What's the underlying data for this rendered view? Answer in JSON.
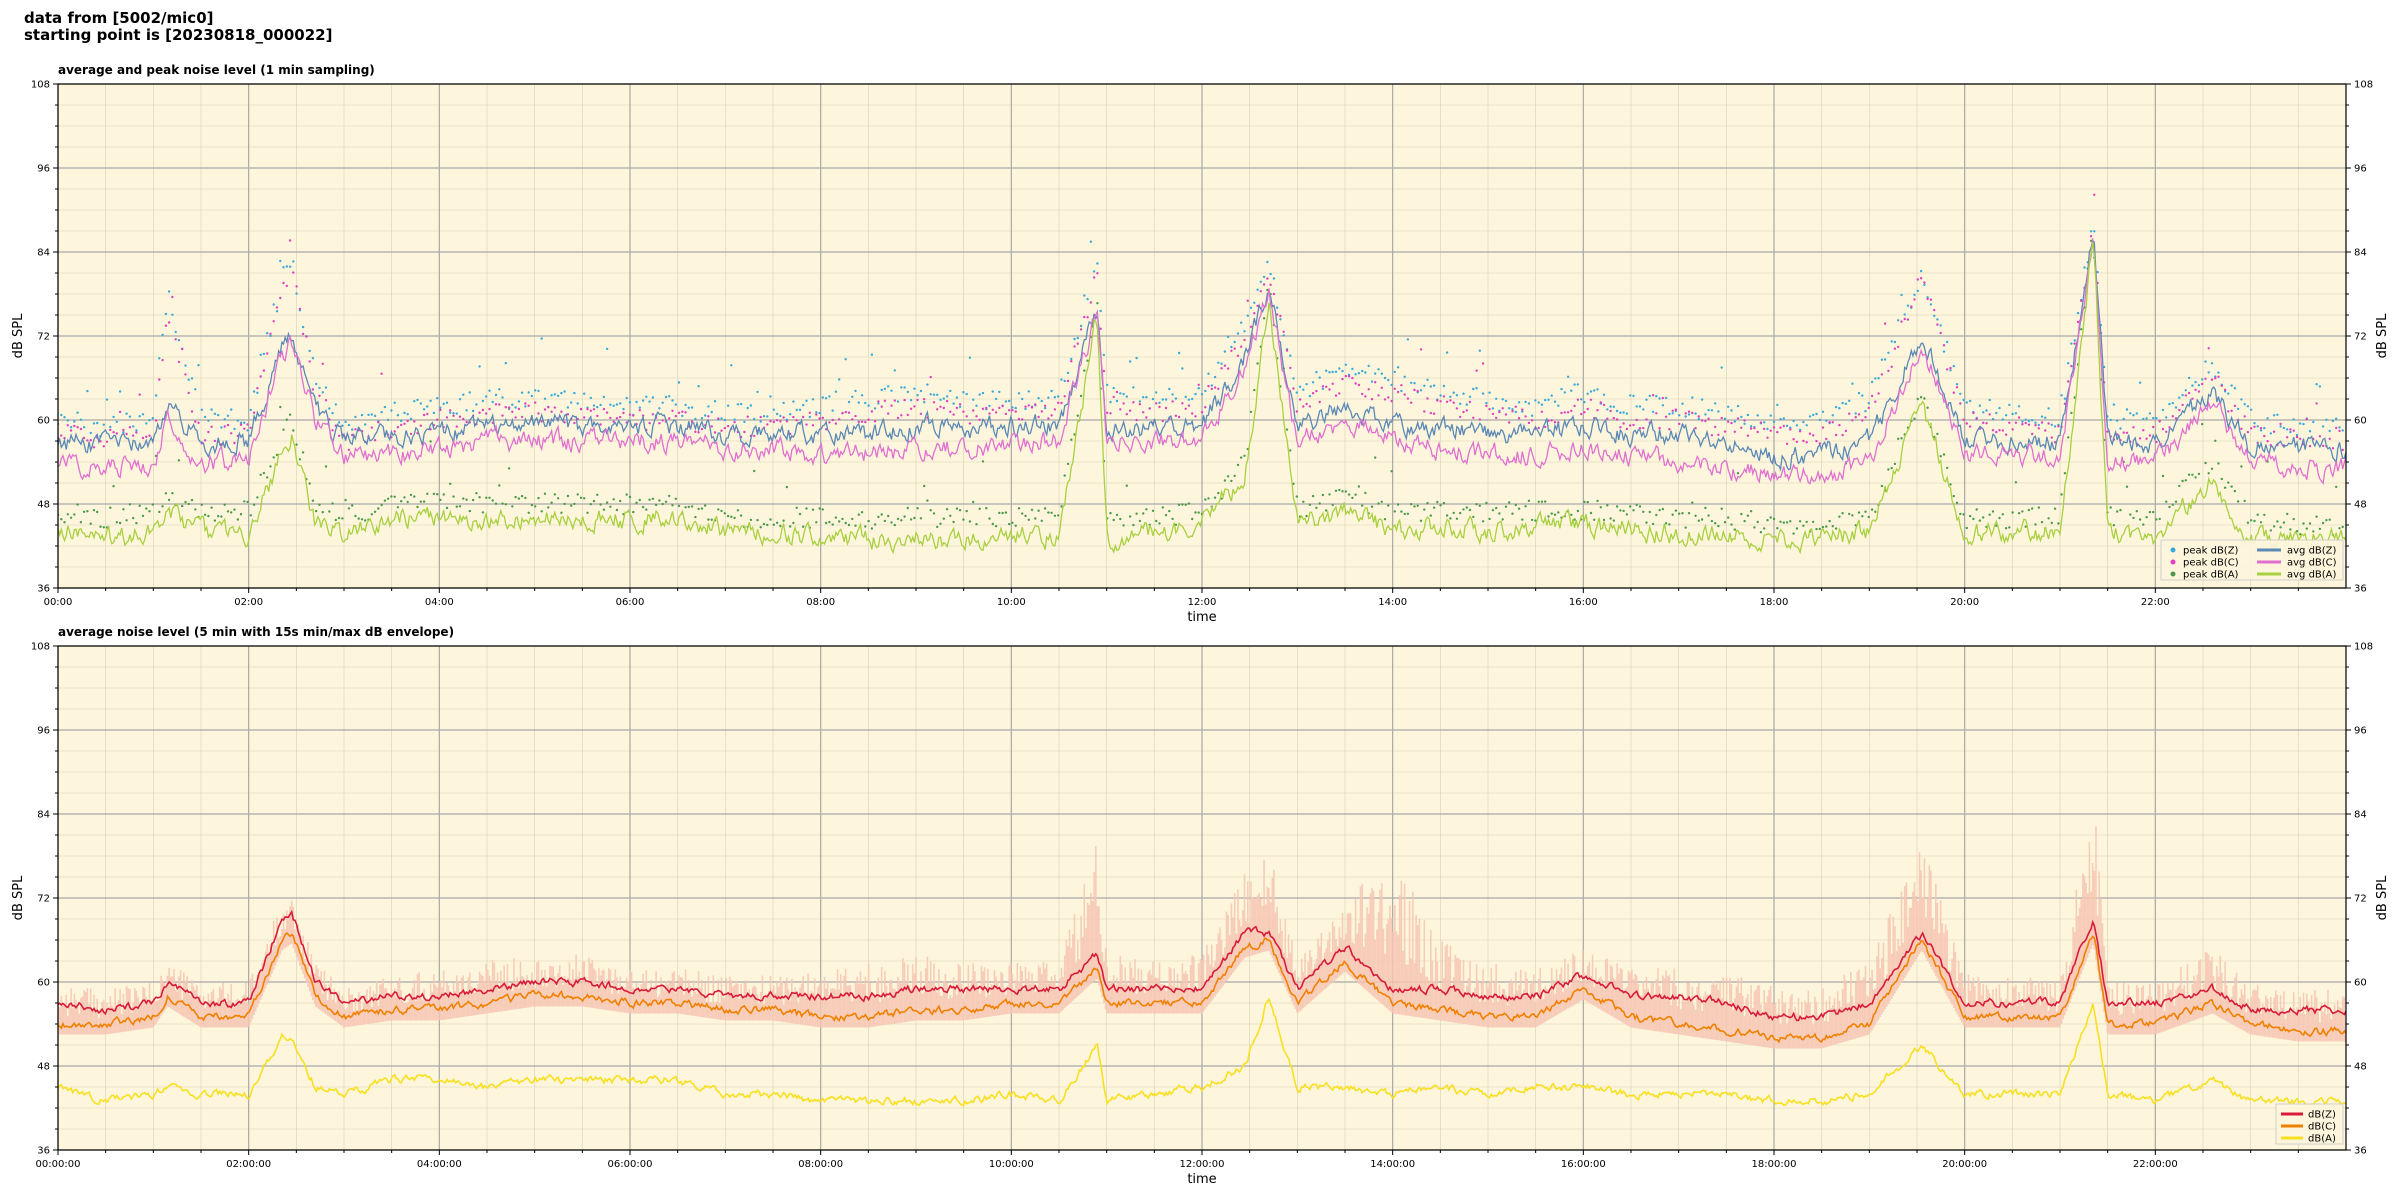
{
  "header": {
    "line1": "data from [5002/mic0]",
    "line2": "starting point is [20230818_000022]"
  },
  "colors": {
    "plot_bg": "#fdf6dc",
    "peak_z": "#3aa8d8",
    "peak_c": "#e040c0",
    "peak_a": "#4a9a4a",
    "avg_z": "#5b88b5",
    "avg_c": "#e070d0",
    "avg_a": "#a8d040",
    "dbz": "#d81b3a",
    "dbc": "#f08000",
    "dba": "#f8e020",
    "envelope": "#f6c6b4"
  },
  "chart_data": [
    {
      "type": "line",
      "title": "average and peak noise level (1 min sampling)",
      "xlabel": "time",
      "ylabel": "dB SPL",
      "ylabel_right": "dB SPL",
      "xlim": [
        0,
        24
      ],
      "ylim": [
        36,
        108
      ],
      "grid": true,
      "x_ticks": [
        0,
        2,
        4,
        6,
        8,
        10,
        12,
        14,
        16,
        18,
        20,
        22
      ],
      "x_tick_labels": [
        "00:00",
        "02:00",
        "04:00",
        "06:00",
        "08:00",
        "10:00",
        "12:00",
        "14:00",
        "16:00",
        "18:00",
        "20:00",
        "22:00"
      ],
      "y_ticks": [
        36,
        48,
        60,
        72,
        84,
        96,
        108
      ],
      "y_tick_labels": [
        "36",
        "48",
        "60",
        "72",
        "84",
        "96",
        "108"
      ],
      "legend_position": "bottom-right",
      "legend": [
        "peak dB(Z)",
        "peak dB(C)",
        "peak dB(A)",
        "avg dB(Z)",
        "avg dB(C)",
        "avg dB(A)"
      ],
      "x": [
        0,
        0.5,
        1,
        1.15,
        1.5,
        2,
        2.35,
        2.45,
        2.7,
        3,
        3.5,
        4,
        4.5,
        5,
        5.5,
        6,
        6.5,
        7,
        7.5,
        8,
        8.5,
        9,
        9.5,
        10,
        10.5,
        10.9,
        11,
        11.5,
        12,
        12.45,
        12.7,
        13,
        13.5,
        14,
        14.5,
        15,
        15.5,
        16,
        16.5,
        17,
        17.5,
        18,
        18.5,
        19,
        19.55,
        20,
        20.5,
        21,
        21.35,
        21.5,
        22,
        22.6,
        23,
        23.5,
        24
      ],
      "series": [
        {
          "name": "avg dB(Z)",
          "kind": "line",
          "values": [
            57,
            56,
            57,
            62,
            57,
            57,
            70,
            72,
            61,
            57,
            58,
            58,
            59,
            59,
            59,
            59,
            59,
            58,
            58,
            58,
            58,
            59,
            59,
            59,
            59,
            76,
            59,
            59,
            59,
            69,
            79,
            59,
            62,
            59,
            59,
            58,
            58,
            59,
            58,
            58,
            57,
            55,
            55,
            57,
            72,
            57,
            57,
            57,
            87,
            57,
            57,
            64,
            56,
            56,
            56
          ]
        },
        {
          "name": "avg dB(C)",
          "kind": "line",
          "values": [
            54,
            53,
            54,
            60,
            54,
            54,
            69,
            71,
            60,
            55,
            55,
            56,
            57,
            57,
            57,
            57,
            57,
            56,
            56,
            55,
            55,
            56,
            56,
            57,
            57,
            75,
            57,
            57,
            57,
            68,
            78,
            57,
            60,
            57,
            56,
            55,
            55,
            56,
            55,
            54,
            53,
            52,
            52,
            54,
            71,
            55,
            55,
            55,
            86,
            54,
            54,
            62,
            54,
            53,
            53
          ]
        },
        {
          "name": "avg dB(A)",
          "kind": "line",
          "values": [
            45,
            43,
            44,
            47,
            44,
            44,
            55,
            58,
            45,
            44,
            46,
            46,
            45,
            46,
            46,
            46,
            46,
            44,
            44,
            43,
            43,
            43,
            43,
            44,
            43,
            75,
            43,
            44,
            45,
            52,
            77,
            45,
            47,
            44,
            45,
            44,
            45,
            45,
            44,
            44,
            44,
            43,
            43,
            44,
            62,
            44,
            44,
            44,
            86,
            44,
            43,
            52,
            43,
            43,
            43
          ]
        },
        {
          "name": "peak dB(Z)",
          "kind": "scatter",
          "values": [
            60,
            59,
            60,
            78,
            60,
            60,
            80,
            83,
            66,
            59,
            61,
            62,
            63,
            63,
            63,
            62,
            62,
            61,
            61,
            62,
            63,
            64,
            63,
            63,
            63,
            83,
            64,
            63,
            64,
            74,
            83,
            64,
            67,
            66,
            64,
            63,
            62,
            64,
            62,
            62,
            61,
            60,
            60,
            63,
            81,
            62,
            61,
            60,
            88,
            60,
            60,
            68,
            60,
            59,
            59
          ]
        },
        {
          "name": "peak dB(C)",
          "kind": "scatter",
          "values": [
            58,
            57,
            58,
            75,
            58,
            58,
            78,
            82,
            64,
            57,
            59,
            60,
            61,
            61,
            61,
            60,
            60,
            59,
            59,
            60,
            61,
            62,
            61,
            61,
            61,
            81,
            62,
            61,
            62,
            72,
            82,
            62,
            65,
            64,
            62,
            61,
            60,
            62,
            60,
            60,
            59,
            58,
            58,
            61,
            80,
            60,
            59,
            58,
            87,
            58,
            58,
            66,
            58,
            57,
            57
          ]
        },
        {
          "name": "peak dB(A)",
          "kind": "scatter",
          "values": [
            47,
            46,
            47,
            50,
            47,
            47,
            58,
            60,
            48,
            46,
            48,
            49,
            48,
            48,
            48,
            48,
            48,
            46,
            46,
            46,
            46,
            46,
            46,
            46,
            46,
            77,
            46,
            46,
            47,
            54,
            79,
            47,
            49,
            47,
            47,
            47,
            47,
            47,
            47,
            46,
            46,
            45,
            45,
            46,
            64,
            46,
            46,
            46,
            87,
            46,
            46,
            54,
            46,
            45,
            45
          ]
        }
      ]
    },
    {
      "type": "line",
      "title": "average noise level (5 min with 15s min/max dB envelope)",
      "xlabel": "time",
      "ylabel": "dB SPL",
      "ylabel_right": "dB SPL",
      "xlim": [
        0,
        24
      ],
      "ylim": [
        36,
        108
      ],
      "grid": true,
      "x_ticks": [
        0,
        2,
        4,
        6,
        8,
        10,
        12,
        14,
        16,
        18,
        20,
        22
      ],
      "x_tick_labels": [
        "00:00:00",
        "02:00:00",
        "04:00:00",
        "06:00:00",
        "08:00:00",
        "10:00:00",
        "12:00:00",
        "14:00:00",
        "16:00:00",
        "18:00:00",
        "20:00:00",
        "22:00:00"
      ],
      "y_ticks": [
        36,
        48,
        60,
        72,
        84,
        96,
        108
      ],
      "y_tick_labels": [
        "36",
        "48",
        "60",
        "72",
        "84",
        "96",
        "108"
      ],
      "legend_position": "bottom-right",
      "legend": [
        "dB(Z)",
        "dB(C)",
        "dB(A)"
      ],
      "x": [
        0,
        0.5,
        1,
        1.15,
        1.5,
        2,
        2.35,
        2.45,
        2.7,
        3,
        3.5,
        4,
        4.5,
        5,
        5.5,
        6,
        6.5,
        7,
        7.5,
        8,
        8.5,
        9,
        9.5,
        10,
        10.5,
        10.9,
        11,
        11.5,
        12,
        12.45,
        12.7,
        13,
        13.5,
        14,
        14.5,
        15,
        15.5,
        16,
        16.5,
        17,
        17.5,
        18,
        18.5,
        19,
        19.55,
        20,
        20.5,
        21,
        21.35,
        21.5,
        22,
        22.6,
        23,
        23.5,
        24
      ],
      "series": [
        {
          "name": "dB(Z)",
          "kind": "line",
          "values": [
            57,
            56,
            57,
            60,
            57,
            57,
            69,
            70,
            60,
            57,
            58,
            58,
            59,
            60,
            60,
            59,
            59,
            58,
            58,
            58,
            58,
            59,
            59,
            59,
            59,
            64,
            59,
            59,
            59,
            67,
            67,
            59,
            65,
            59,
            59,
            58,
            58,
            61,
            58,
            58,
            57,
            55,
            55,
            57,
            67,
            57,
            57,
            57,
            69,
            57,
            57,
            59,
            56,
            56,
            56
          ]
        },
        {
          "name": "dB(C)",
          "kind": "line",
          "values": [
            54,
            54,
            55,
            58,
            55,
            55,
            66,
            67,
            58,
            55,
            56,
            56,
            57,
            58,
            58,
            57,
            57,
            56,
            56,
            55,
            55,
            56,
            56,
            57,
            57,
            62,
            57,
            57,
            57,
            65,
            66,
            57,
            63,
            57,
            56,
            55,
            55,
            59,
            55,
            54,
            53,
            52,
            52,
            54,
            66,
            55,
            55,
            55,
            67,
            54,
            54,
            57,
            54,
            53,
            53
          ]
        },
        {
          "name": "dB(A)",
          "kind": "line",
          "values": [
            45,
            43,
            44,
            45,
            44,
            44,
            52,
            52,
            45,
            44,
            46,
            46,
            45,
            46,
            46,
            46,
            46,
            44,
            44,
            43,
            43,
            43,
            43,
            44,
            43,
            51,
            43,
            44,
            45,
            48,
            58,
            45,
            45,
            44,
            45,
            44,
            45,
            45,
            44,
            44,
            44,
            43,
            43,
            44,
            51,
            44,
            44,
            44,
            57,
            44,
            43,
            46,
            43,
            43,
            43
          ]
        },
        {
          "name": "envelope max",
          "kind": "band_upper",
          "values": [
            60,
            59,
            60,
            63,
            60,
            60,
            72,
            72,
            63,
            59,
            61,
            62,
            63,
            64,
            64,
            62,
            62,
            61,
            61,
            62,
            63,
            64,
            63,
            63,
            63,
            80,
            64,
            63,
            64,
            76,
            79,
            64,
            72,
            78,
            66,
            63,
            62,
            65,
            62,
            62,
            61,
            60,
            60,
            63,
            80,
            62,
            61,
            60,
            89,
            60,
            60,
            65,
            60,
            59,
            59
          ]
        }
      ]
    }
  ]
}
